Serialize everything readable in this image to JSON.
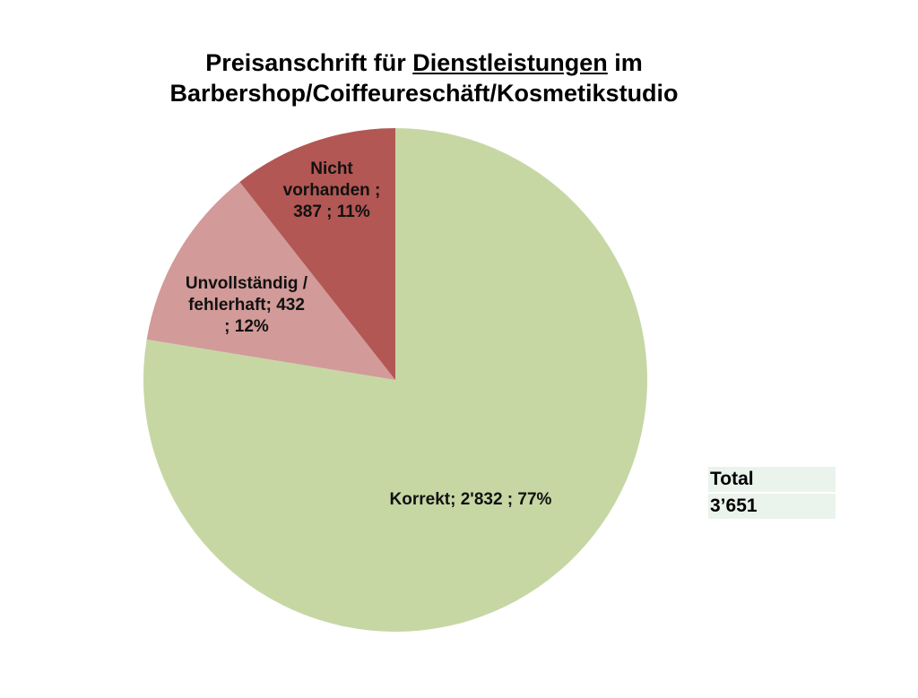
{
  "title": {
    "line1_prefix": "Preisanschrift für ",
    "line1_underlined": "Dienstleistungen",
    "line1_suffix": " im",
    "line2": "Barbershop/Coiffeureschäft/Kosmetikstudio"
  },
  "labels": {
    "korrekt": "Korrekt; 2'832 ; 77%",
    "unvollstaendig": "Unvollständig /\nfehlerhaft; 432\n; 12%",
    "nicht_vorhanden": "Nicht\nvorhanden ;\n387 ; 11%"
  },
  "total": {
    "label": "Total",
    "value": "3’651"
  },
  "colors": {
    "korrekt": "#c6d7a4",
    "unvollstaendig": "#d29a98",
    "nicht_vorhanden": "#b25753",
    "total_bg": "#eaf3ec"
  },
  "chart_data": {
    "type": "pie",
    "title": "Preisanschrift für Dienstleistungen im Barbershop/Coiffeureschäft/Kosmetikstudio",
    "categories": [
      "Korrekt",
      "Unvollständig / fehlerhaft",
      "Nicht vorhanden"
    ],
    "values": [
      2832,
      432,
      387
    ],
    "percentages": [
      77,
      12,
      11
    ],
    "colors": [
      "#c6d7a4",
      "#d29a98",
      "#b25753"
    ],
    "total": 3651,
    "start_angle": "12 o'clock, clockwise",
    "legend": "none (data labels on slices)"
  }
}
